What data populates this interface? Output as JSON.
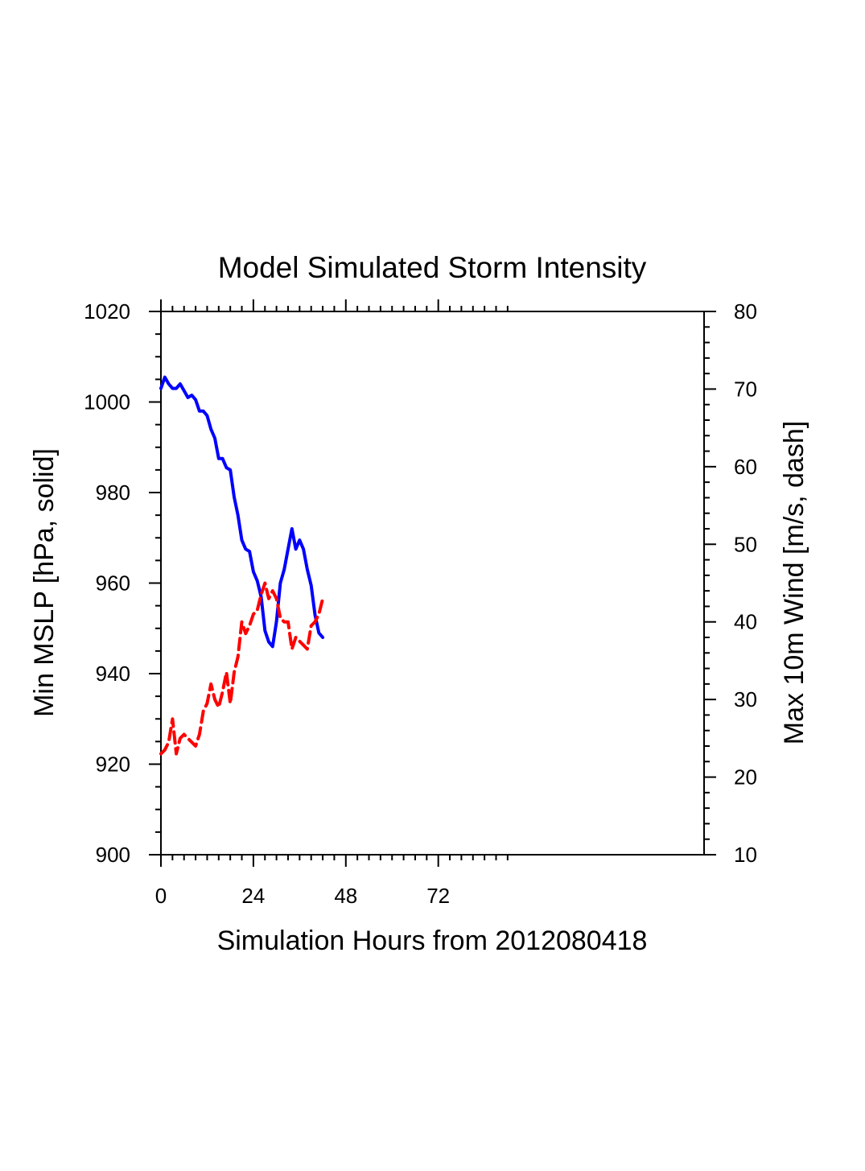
{
  "chart_data": {
    "type": "line",
    "title": "Model Simulated Storm Intensity",
    "xlabel": "Simulation Hours from 2012080418",
    "ylabel_left": "Min MSLP  [hPa, solid]",
    "ylabel_right": "Max 10m Wind  [m/s, dash]",
    "xlim": [
      0,
      141
    ],
    "xticks": [
      0,
      24,
      48,
      72
    ],
    "ylim_left": [
      900,
      1020
    ],
    "yticks_left": [
      900,
      920,
      940,
      960,
      980,
      1000,
      1020
    ],
    "ylim_right": [
      10,
      80
    ],
    "yticks_right": [
      10,
      20,
      30,
      40,
      50,
      60,
      70,
      80
    ],
    "grid": false,
    "legend": "none",
    "series": [
      {
        "axis": "left",
        "style": "solid",
        "color": "#0000ff",
        "x": [
          0,
          1,
          2,
          3,
          4,
          5,
          6,
          7,
          8,
          9,
          10,
          11,
          12,
          13,
          14,
          15,
          16,
          17,
          18,
          19,
          20,
          21,
          22,
          23,
          24,
          25,
          26,
          27,
          28,
          29,
          30,
          31,
          32,
          33,
          34,
          35,
          36,
          37,
          38,
          39,
          40,
          41,
          42
        ],
        "values": [
          1003,
          1005.5,
          1004,
          1003,
          1003,
          1004,
          1002.5,
          1001,
          1001.5,
          1000.5,
          998,
          998,
          997,
          994,
          992,
          987.5,
          987.5,
          985.5,
          985,
          979,
          975,
          969.5,
          967.5,
          967,
          962.5,
          960.5,
          957,
          949.5,
          947,
          946,
          951.5,
          960,
          963,
          967.5,
          972,
          967.5,
          969.5,
          967.5,
          963,
          959.5,
          953,
          949,
          948
        ]
      },
      {
        "axis": "right",
        "style": "dash",
        "color": "#ff0000",
        "x": [
          0,
          1,
          2,
          3,
          4,
          5,
          6,
          7,
          8,
          9,
          10,
          11,
          12,
          13,
          14,
          15,
          16,
          17,
          18,
          19,
          20,
          21,
          22,
          23,
          24,
          25,
          26,
          27,
          28,
          29,
          30,
          31,
          32,
          33,
          34,
          35,
          36,
          37,
          38,
          39,
          40,
          41,
          42
        ],
        "values": [
          23,
          23.5,
          24.5,
          27.5,
          23,
          25,
          25.5,
          25,
          24.5,
          24,
          25.5,
          28.5,
          29.5,
          32,
          30,
          29,
          31,
          33.5,
          29.5,
          33.5,
          35.5,
          40,
          38.5,
          39.5,
          41,
          41.5,
          43.5,
          45,
          43,
          44,
          43,
          40.5,
          40,
          40,
          36.5,
          38,
          37.5,
          37,
          36.5,
          39.5,
          40,
          41,
          43
        ]
      }
    ]
  }
}
